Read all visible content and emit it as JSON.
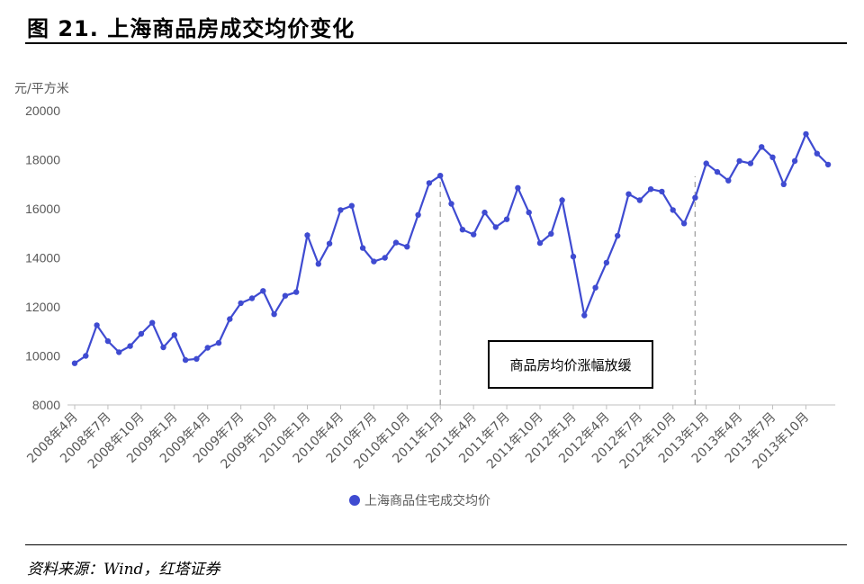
{
  "figure": {
    "title": "图 21. 上海商品房成交均价变化",
    "source": "资料来源：Wind，红塔证券"
  },
  "chart_data": {
    "type": "line",
    "ylabel": "元/平方米",
    "ylim": [
      8000,
      20000
    ],
    "yticks": [
      8000,
      10000,
      12000,
      14000,
      16000,
      18000,
      20000
    ],
    "grid": false,
    "legend_position": "bottom",
    "color": "#3f4bd1",
    "x_start": "2008年4月",
    "x_tick_labels": [
      "2008年4月",
      "2008年7月",
      "2008年10月",
      "2009年1月",
      "2009年4月",
      "2009年7月",
      "2009年10月",
      "2010年1月",
      "2010年4月",
      "2010年7月",
      "2010年10月",
      "2011年1月",
      "2011年4月",
      "2011年7月",
      "2011年10月",
      "2012年1月",
      "2012年4月",
      "2012年7月",
      "2012年10月",
      "2013年1月",
      "2013年4月",
      "2013年7月",
      "2013年10月"
    ],
    "series": [
      {
        "name": "上海商品住宅成交均价",
        "values": [
          9700,
          10000,
          11250,
          10600,
          10150,
          10400,
          10900,
          11350,
          10350,
          10850,
          9830,
          9880,
          10330,
          10530,
          11500,
          12150,
          12350,
          12650,
          11700,
          12450,
          12600,
          14920,
          13750,
          14580,
          15950,
          16120,
          14400,
          13850,
          14000,
          14620,
          14450,
          15750,
          17050,
          17350,
          16200,
          15150,
          14950,
          15850,
          15250,
          15570,
          16850,
          15850,
          14600,
          14980,
          16350,
          14050,
          11650,
          12780,
          13800,
          14900,
          16600,
          16350,
          16800,
          16700,
          15950,
          15400,
          16450,
          17850,
          17500,
          17150,
          17950,
          17850,
          18520,
          18100,
          17000,
          17950,
          19050,
          18250,
          17800
        ]
      }
    ],
    "reference_lines": [
      {
        "x": "2011年1月"
      },
      {
        "x": "2012年12月"
      }
    ],
    "annotations": [
      {
        "text": "商品房均价涨幅放缓"
      }
    ]
  }
}
